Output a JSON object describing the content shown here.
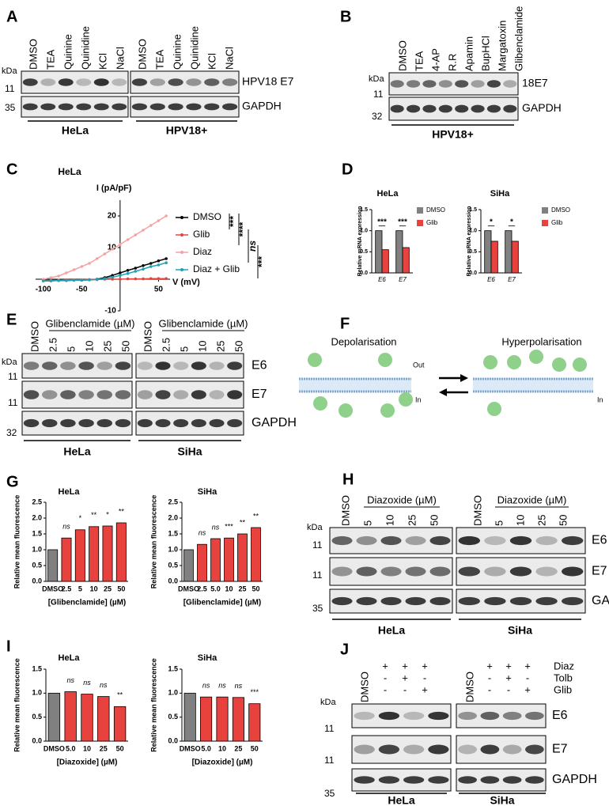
{
  "panel_letters": [
    "A",
    "B",
    "C",
    "D",
    "E",
    "F",
    "G",
    "H",
    "I",
    "J"
  ],
  "panels": {
    "A": {
      "groups": [
        {
          "lanes": [
            "DMSO",
            "TEA",
            "Quinine",
            "Quinidine",
            "KCl",
            "NaCl"
          ],
          "name": "HeLa"
        },
        {
          "lanes": [
            "DMSO",
            "TEA",
            "Quinine",
            "Quinidine",
            "KCl",
            "NaCl"
          ],
          "name": "HPV18+"
        }
      ],
      "kda": "kDa",
      "markers": [
        "11",
        "35"
      ],
      "rows": [
        "HPV18 E7",
        "GAPDH"
      ]
    },
    "B": {
      "groups": [
        {
          "lanes": [
            "DMSO",
            "TEA",
            "4-AP",
            "R.R",
            "Apamin",
            "BupHCl",
            "Margatoxin",
            "Glibenclamide"
          ],
          "name": "HPV18+"
        }
      ],
      "kda": "kDa",
      "markers": [
        "11",
        "32"
      ],
      "rows": [
        "18E7",
        "GAPDH"
      ]
    },
    "E": {
      "groups": [
        {
          "lanes": [
            "DMSO",
            "2.5",
            "5",
            "10",
            "25",
            "50"
          ],
          "treatment": "Glibenclamide (µM)",
          "name": "HeLa"
        },
        {
          "lanes": [
            "DMSO",
            "2.5",
            "5",
            "10",
            "25",
            "50"
          ],
          "treatment": "Glibenclamide (µM)",
          "name": "SiHa"
        }
      ],
      "kda": "kDa",
      "markers": [
        "11",
        "11",
        "32"
      ],
      "rows": [
        "E6",
        "E7",
        "GAPDH"
      ]
    },
    "F": {
      "left": {
        "title": "Depolarisation",
        "outside": "Out",
        "inside": "In"
      },
      "right": {
        "title": "Hyperpolarisation",
        "inside": "In"
      }
    },
    "H": {
      "groups": [
        {
          "lanes": [
            "DMSO",
            "5",
            "10",
            "25",
            "50"
          ],
          "treatment": "Diazoxide (µM)",
          "name": "HeLa"
        },
        {
          "lanes": [
            "DMSO",
            "5",
            "10",
            "25",
            "50"
          ],
          "treatment": "Diazoxide (µM)",
          "name": "SiHa"
        }
      ],
      "kda": "kDa",
      "markers": [
        "11",
        "11",
        "35"
      ],
      "rows": [
        "E6",
        "E7",
        "GAPDH"
      ]
    },
    "J": {
      "conditions": [
        "Diaz",
        "Tolb",
        "Glib"
      ],
      "groups": [
        {
          "lanes": [
            "DMSO"
          ],
          "signs": [
            [
              "+",
              "+",
              "+"
            ],
            [
              "-",
              "+",
              "-"
            ],
            [
              "-",
              "-",
              "+"
            ]
          ],
          "name": "HeLa"
        },
        {
          "lanes": [
            "DMSO"
          ],
          "signs": [
            [
              "+",
              "+",
              "+"
            ],
            [
              "-",
              "+",
              "-"
            ],
            [
              "-",
              "-",
              "+"
            ]
          ],
          "name": "SiHa"
        }
      ],
      "kda": "kDa",
      "markers": [
        "11",
        "11",
        "35"
      ],
      "rows": [
        "E6",
        "E7",
        "GAPDH"
      ]
    }
  },
  "chart_data": [
    {
      "type": "line",
      "title": "HeLa",
      "x_label": "V (mV)",
      "y_label": "I (pA/pF)",
      "x": [
        -100,
        -90,
        -80,
        -70,
        -60,
        -50,
        -40,
        -30,
        -20,
        -10,
        0,
        10,
        20,
        30,
        40,
        50,
        60
      ],
      "series": [
        {
          "name": "DMSO",
          "color": "#000000",
          "values": [
            -0.5,
            -0.5,
            -0.4,
            -0.4,
            -0.3,
            -0.3,
            -0.2,
            0,
            0.5,
            1.2,
            2,
            2.8,
            3.5,
            4.3,
            5,
            5.8,
            6.5
          ]
        },
        {
          "name": "Glib",
          "color": "#e8423f",
          "values": [
            -0.3,
            -0.3,
            -0.3,
            -0.2,
            -0.2,
            -0.2,
            -0.1,
            -0.1,
            0,
            0,
            0,
            0.1,
            0.1,
            0.1,
            0.2,
            0.2,
            0.2
          ]
        },
        {
          "name": "Diaz",
          "color": "#f4a3a3",
          "values": [
            0,
            0.5,
            1,
            2,
            3,
            4,
            5,
            6.5,
            8,
            9.5,
            11,
            12.5,
            14,
            15.5,
            17,
            18.5,
            20
          ]
        },
        {
          "name": "Diaz + Glib",
          "color": "#1aa3b8",
          "values": [
            -0.5,
            -0.5,
            -0.4,
            -0.4,
            -0.3,
            -0.3,
            -0.2,
            -0.1,
            0.2,
            0.6,
            1.2,
            1.8,
            2.5,
            3.2,
            4,
            4.5,
            5.2
          ]
        }
      ],
      "xlim": [
        -110,
        65
      ],
      "ylim": [
        -10,
        25
      ],
      "xticks": [
        -100,
        -50,
        50
      ],
      "yticks": [
        -10,
        10,
        20
      ],
      "annotations": [
        "***",
        "****",
        "ns",
        "***"
      ]
    },
    {
      "type": "grouped_bar",
      "title": "HeLa",
      "y_label": "Relative mRNA expression",
      "categories": [
        "E6",
        "E7"
      ],
      "series": [
        {
          "name": "DMSO",
          "color": "#808080",
          "values": [
            1,
            1
          ]
        },
        {
          "name": "Glib",
          "color": "#e8423f",
          "values": [
            0.55,
            0.6
          ]
        }
      ],
      "ylim": [
        0,
        1.5
      ],
      "yticks": [
        {
          "value": 0,
          "label": "0.0"
        },
        0.5,
        {
          "value": 1,
          "label": "1.0"
        },
        1.5
      ],
      "annotations": [
        "***",
        "***"
      ]
    },
    {
      "type": "grouped_bar",
      "title": "SiHa",
      "y_label": "Relative mRNA expression",
      "categories": [
        "E6",
        "E7"
      ],
      "series": [
        {
          "name": "DMSO",
          "color": "#808080",
          "values": [
            1,
            1
          ]
        },
        {
          "name": "Glib",
          "color": "#e8423f",
          "values": [
            0.75,
            0.75
          ]
        }
      ],
      "ylim": [
        0,
        1.5
      ],
      "yticks": [
        {
          "value": 0,
          "label": "0.0"
        },
        0.5,
        {
          "value": 1,
          "label": "1.0"
        },
        1.5
      ],
      "annotations": [
        "*",
        "*"
      ]
    },
    {
      "type": "bar",
      "title": "HeLa",
      "x_label": "[Glibenclamide] (µM)",
      "y_label": "Relative mean fluorescence",
      "categories": [
        "DMSO",
        "2.5",
        "5",
        "10",
        "25",
        "50"
      ],
      "values": [
        1,
        1.37,
        1.63,
        1.73,
        1.75,
        1.85
      ],
      "colors": [
        "#808080",
        "#e8423f",
        "#e8423f",
        "#e8423f",
        "#e8423f",
        "#e8423f"
      ],
      "ylim": [
        0,
        2.5
      ],
      "yticks": [
        {
          "value": 0,
          "label": "0.0"
        },
        0.5,
        {
          "value": 1,
          "label": "1.0"
        },
        1.5,
        {
          "value": 2,
          "label": "2.0"
        },
        2.5
      ],
      "annotations": [
        null,
        "ns",
        "*",
        "**",
        "*",
        "**"
      ]
    },
    {
      "type": "bar",
      "title": "SiHa",
      "x_label": "[Glibenclamide] (µM)",
      "y_label": "Relative mean fluorescence",
      "categories": [
        "DMSO",
        "2.5",
        "5.0",
        "10",
        "25",
        "50"
      ],
      "values": [
        1,
        1.17,
        1.35,
        1.37,
        1.5,
        1.7
      ],
      "colors": [
        "#808080",
        "#e8423f",
        "#e8423f",
        "#e8423f",
        "#e8423f",
        "#e8423f"
      ],
      "ylim": [
        0,
        2.5
      ],
      "yticks": [
        {
          "value": 0,
          "label": "0.0"
        },
        0.5,
        {
          "value": 1,
          "label": "1.0"
        },
        1.5,
        {
          "value": 2,
          "label": "2.0"
        },
        2.5
      ],
      "annotations": [
        null,
        "ns",
        "ns",
        "***",
        "**",
        "**"
      ]
    },
    {
      "type": "bar",
      "title": "HeLa",
      "x_label": "[Diazoxide] (µM)",
      "y_label": "Relative mean fluorescence",
      "categories": [
        "DMSO",
        "5.0",
        "10",
        "25",
        "50"
      ],
      "values": [
        1,
        1.03,
        0.98,
        0.93,
        0.72
      ],
      "colors": [
        "#808080",
        "#e8423f",
        "#e8423f",
        "#e8423f",
        "#e8423f"
      ],
      "ylim": [
        0,
        1.5
      ],
      "yticks": [
        {
          "value": 0,
          "label": "0.0"
        },
        0.5,
        {
          "value": 1,
          "label": "1.0"
        },
        1.5
      ],
      "annotations": [
        null,
        "ns",
        "ns",
        "ns",
        "**"
      ]
    },
    {
      "type": "bar",
      "title": "SiHa",
      "x_label": "[Diazoxide] (µM)",
      "y_label": "Relative mean fluorescence",
      "categories": [
        "DMSO",
        "5.0",
        "10",
        "25",
        "50"
      ],
      "values": [
        1,
        0.92,
        0.92,
        0.91,
        0.78
      ],
      "colors": [
        "#808080",
        "#e8423f",
        "#e8423f",
        "#e8423f",
        "#e8423f"
      ],
      "ylim": [
        0,
        1.5
      ],
      "yticks": [
        {
          "value": 0,
          "label": "0.0"
        },
        0.5,
        {
          "value": 1,
          "label": "1.0"
        },
        1.5
      ],
      "annotations": [
        null,
        "ns",
        "ns",
        "ns",
        "***"
      ]
    }
  ]
}
